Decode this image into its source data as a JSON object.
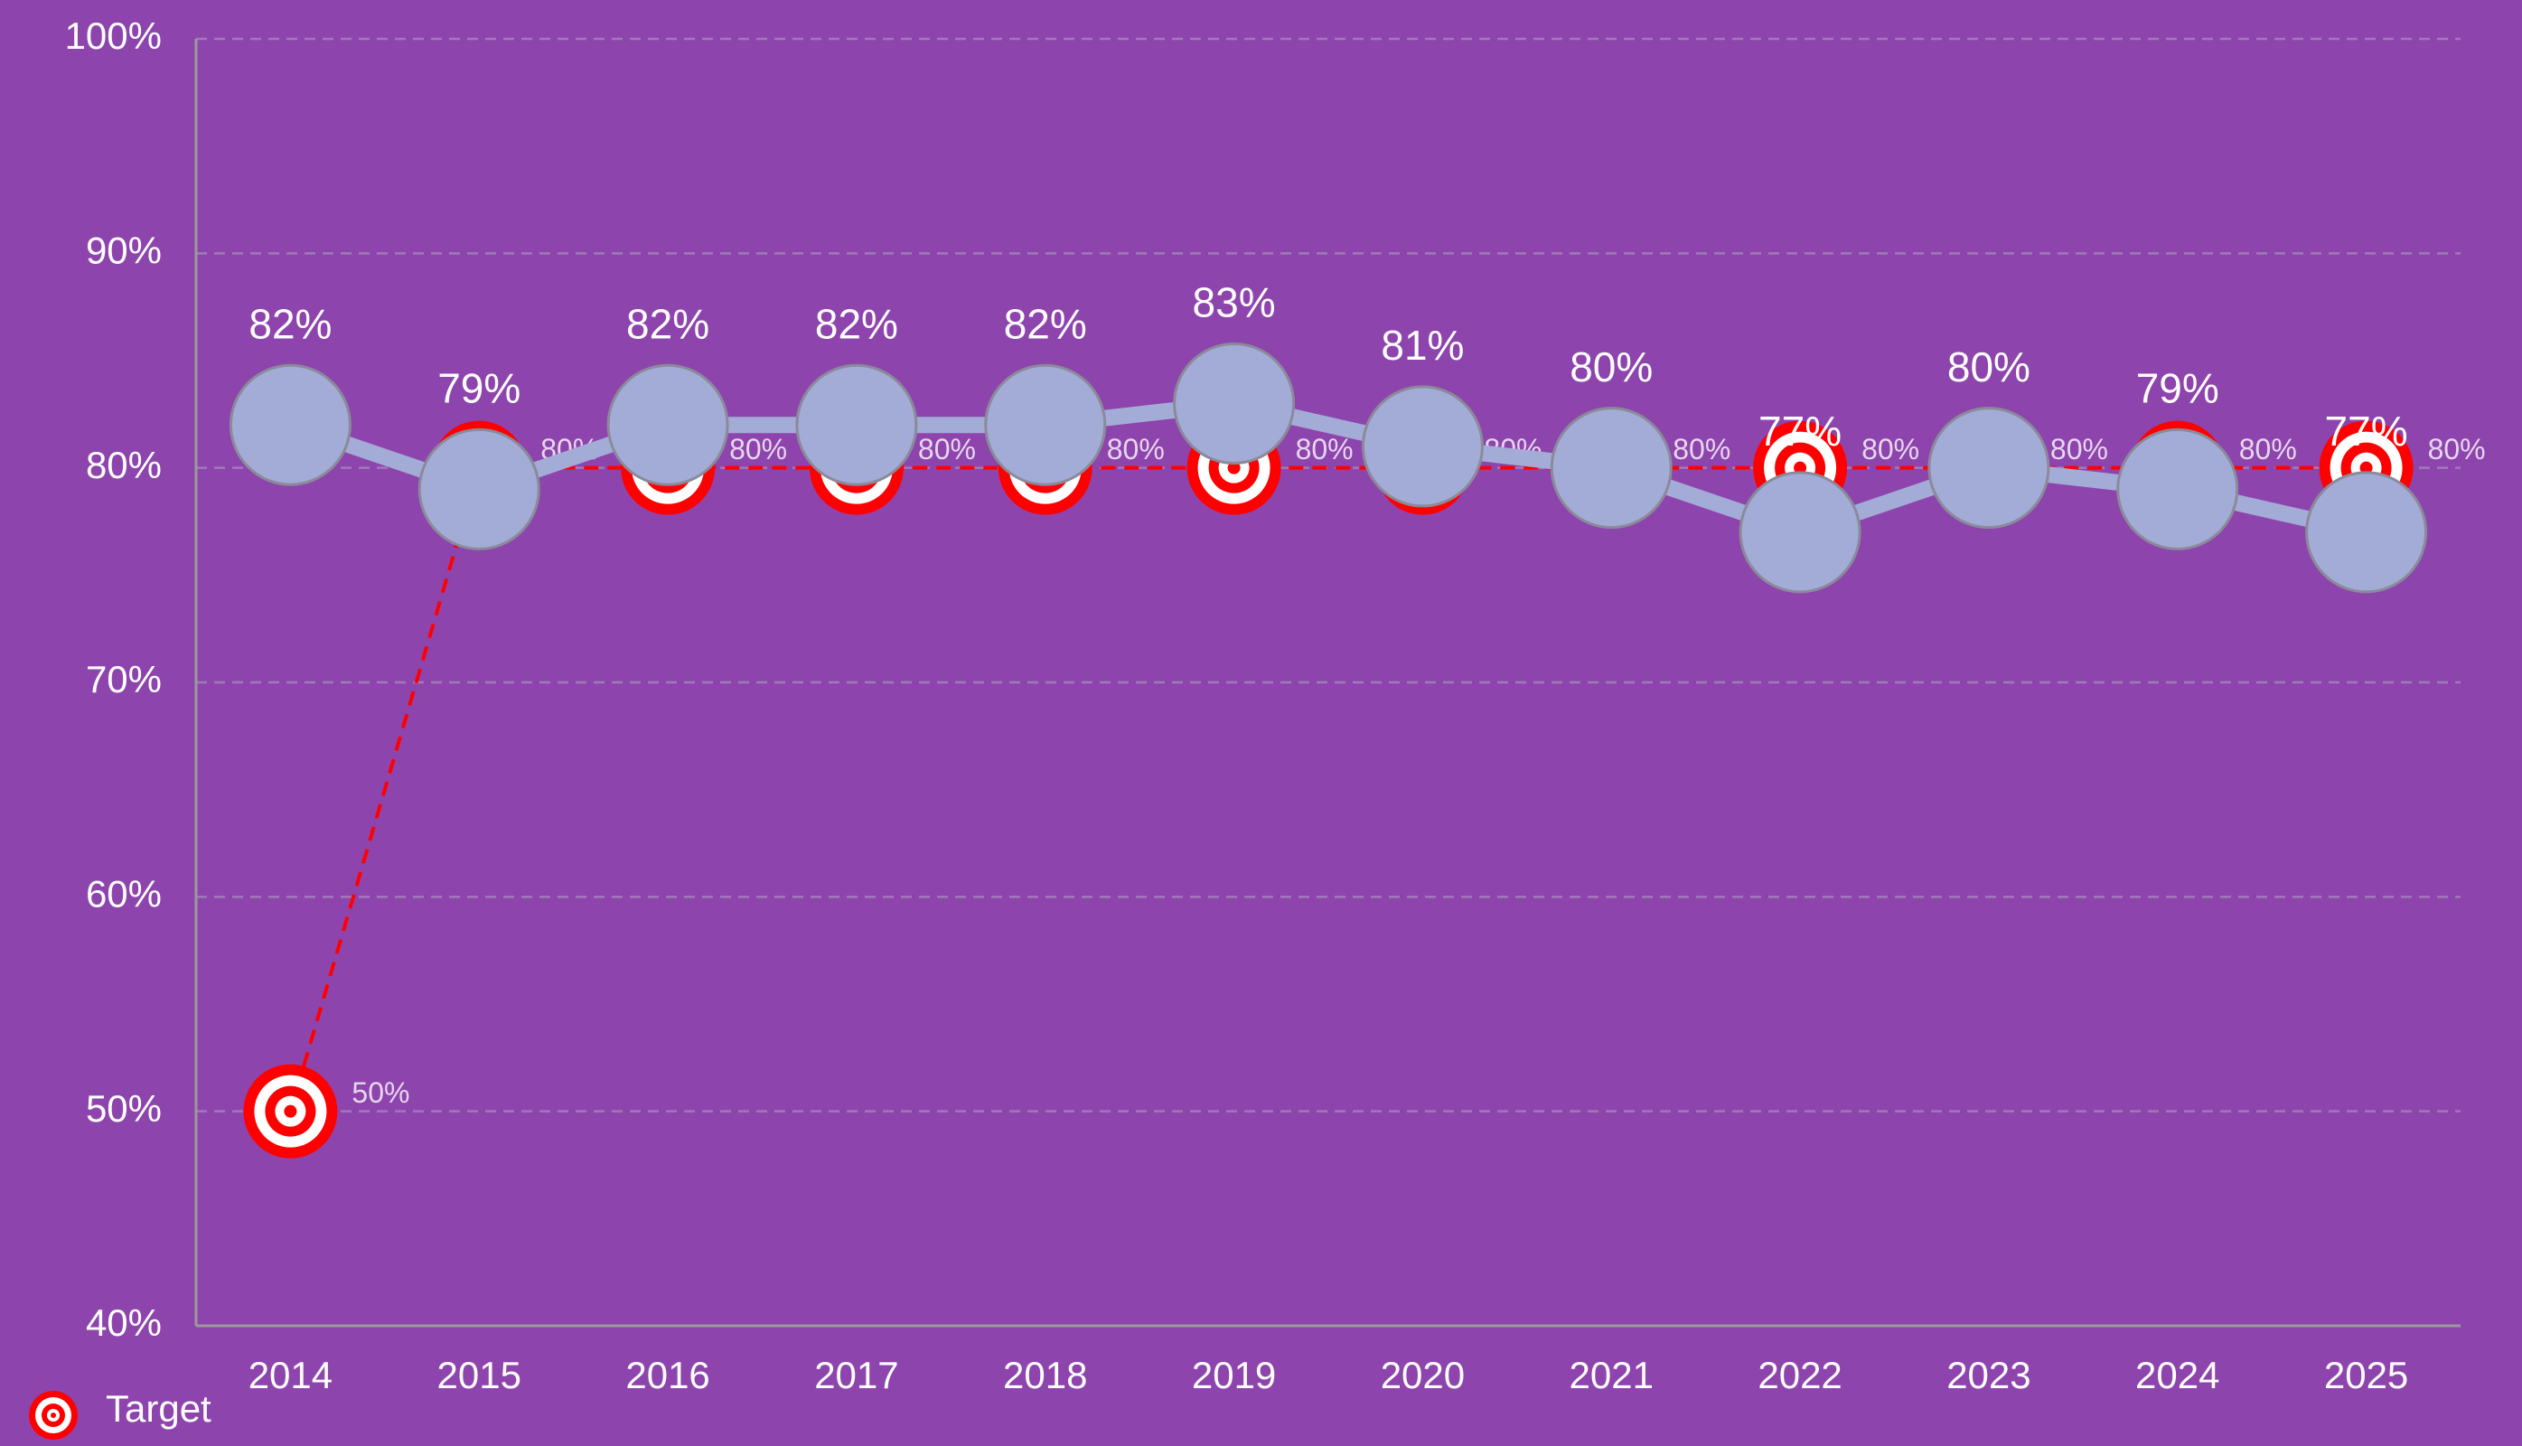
{
  "chart_data": {
    "type": "line",
    "categories": [
      "2014",
      "2015",
      "2016",
      "2017",
      "2018",
      "2019",
      "2020",
      "2021",
      "2022",
      "2023",
      "2024",
      "2025"
    ],
    "series": [
      {
        "color": "#a3acd6",
        "values": [
          82,
          79,
          82,
          82,
          82,
          83,
          81,
          80,
          77,
          80,
          79,
          77
        ],
        "value_labels": [
          "82%",
          "79%",
          "82%",
          "82%",
          "82%",
          "83%",
          "81%",
          "80%",
          "77%",
          "80%",
          "79%",
          "77%"
        ]
      },
      {
        "name": "Target",
        "color": "#ff0000",
        "values": [
          50,
          80,
          80,
          80,
          80,
          80,
          80,
          80,
          80,
          80,
          80,
          80
        ],
        "value_labels": [
          "50%",
          "80%",
          "80%",
          "80%",
          "80%",
          "80%",
          "80%",
          "80%",
          "80%",
          "80%",
          "80%",
          "80%"
        ]
      }
    ],
    "ylim": [
      40,
      100
    ],
    "yticks": [
      {
        "value": 40,
        "label": "40%"
      },
      {
        "value": 50,
        "label": "50%"
      },
      {
        "value": 60,
        "label": "60%"
      },
      {
        "value": 70,
        "label": "70%"
      },
      {
        "value": 80,
        "label": "80%"
      },
      {
        "value": 90,
        "label": "90%"
      },
      {
        "value": 100,
        "label": "100%"
      }
    ],
    "grid": true,
    "legend": "bottom-left"
  }
}
